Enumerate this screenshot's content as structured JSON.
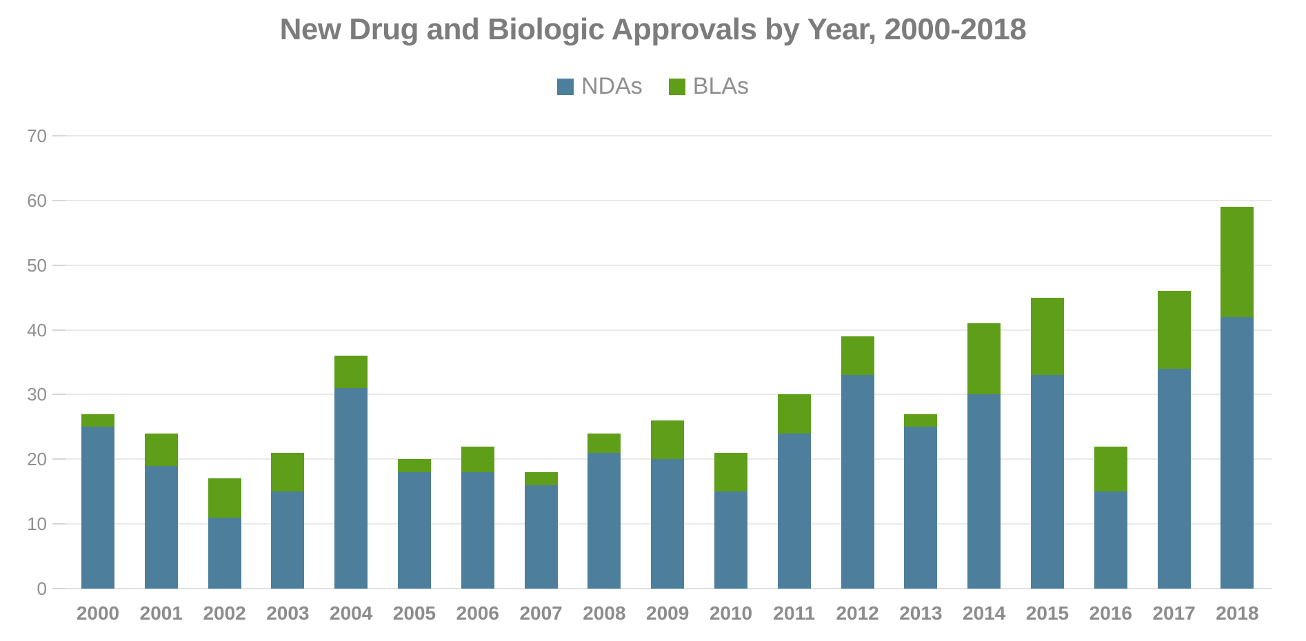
{
  "chart_data": {
    "type": "bar",
    "stacked": true,
    "title": "New Drug and Biologic Approvals by Year, 2000-2018",
    "categories": [
      "2000",
      "2001",
      "2002",
      "2003",
      "2004",
      "2005",
      "2006",
      "2007",
      "2008",
      "2009",
      "2010",
      "2011",
      "2012",
      "2013",
      "2014",
      "2015",
      "2016",
      "2017",
      "2018"
    ],
    "series": [
      {
        "name": "NDAs",
        "color": "#4d7f9c",
        "values": [
          25,
          19,
          11,
          15,
          31,
          18,
          18,
          16,
          21,
          20,
          15,
          24,
          33,
          25,
          30,
          33,
          15,
          34,
          42
        ]
      },
      {
        "name": "BLAs",
        "color": "#5f9e18",
        "values": [
          2,
          5,
          6,
          6,
          5,
          2,
          4,
          2,
          3,
          6,
          6,
          6,
          6,
          2,
          11,
          12,
          7,
          12,
          17
        ]
      }
    ],
    "ylim": [
      0,
      70
    ],
    "yticks": [
      0,
      10,
      20,
      30,
      40,
      50,
      60,
      70
    ],
    "grid": true,
    "legend_position": "top",
    "xlabel": "",
    "ylabel": "",
    "styles": {
      "title_color": "#7c7c7c",
      "axis_label_color": "#8f8f8f",
      "category_label_color": "#8c8c8c",
      "gridline_color": "#e9e9e9",
      "tick_color": "#d6d6d6",
      "background": "#ffffff"
    }
  }
}
